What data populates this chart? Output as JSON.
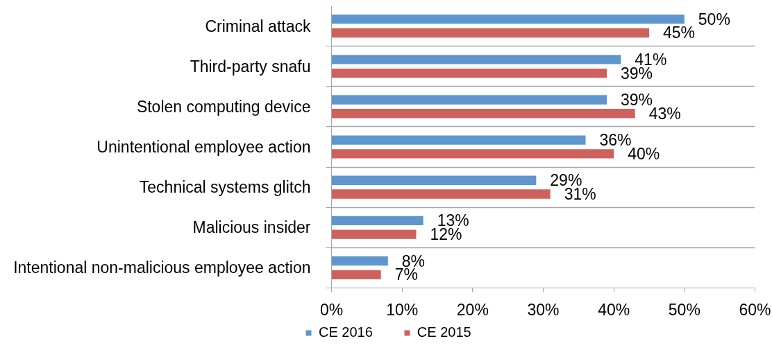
{
  "chart_data": {
    "type": "bar",
    "orientation": "horizontal",
    "categories": [
      "Criminal attack",
      "Third-party snafu",
      "Stolen computing device",
      "Unintentional employee action",
      "Technical systems glitch",
      "Malicious insider",
      "Intentional non-malicious employee action"
    ],
    "series": [
      {
        "name": "CE 2016",
        "color": "#5f96cd",
        "values": [
          50,
          41,
          39,
          36,
          29,
          13,
          8
        ],
        "value_labels": [
          "50%",
          "41%",
          "39%",
          "36%",
          "29%",
          "13%",
          "8%"
        ]
      },
      {
        "name": "CE 2015",
        "color": "#cd625c",
        "values": [
          45,
          39,
          43,
          40,
          31,
          12,
          7
        ],
        "value_labels": [
          "45%",
          "39%",
          "43%",
          "40%",
          "31%",
          "12%",
          "7%"
        ]
      }
    ],
    "xlim": [
      0,
      60
    ],
    "xticks": [
      {
        "value": 0,
        "label": "0%"
      },
      {
        "value": 10,
        "label": "10%"
      },
      {
        "value": 20,
        "label": "20%"
      },
      {
        "value": 30,
        "label": "30%"
      },
      {
        "value": 40,
        "label": "40%"
      },
      {
        "value": 50,
        "label": "50%"
      },
      {
        "value": 60,
        "label": "60%"
      }
    ],
    "grid": "y",
    "legend": "bottom"
  }
}
